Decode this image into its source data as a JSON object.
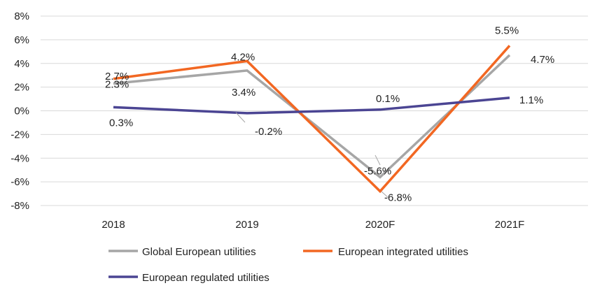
{
  "chart_data": {
    "type": "line",
    "categories": [
      "2018",
      "2019",
      "2020F",
      "2021F"
    ],
    "ylim": [
      -8,
      8
    ],
    "y_ticks": [
      8,
      6,
      4,
      2,
      0,
      -2,
      -4,
      -6,
      -8
    ],
    "y_tick_labels": [
      "8%",
      "6%",
      "4%",
      "2%",
      "0%",
      "-2%",
      "-4%",
      "-6%",
      "-8%"
    ],
    "grid": true,
    "legend_position": "bottom",
    "series": [
      {
        "name": "Global European utilities",
        "color": "#a6a6a6",
        "values": [
          2.3,
          3.4,
          -5.6,
          4.7
        ],
        "labels": [
          "2.3%",
          "3.4%",
          "-5.6%",
          "4.7%"
        ]
      },
      {
        "name": "European integrated utilities",
        "color": "#f26722",
        "values": [
          2.7,
          4.2,
          -6.8,
          5.5
        ],
        "labels": [
          "2.7%",
          "4.2%",
          "-6.8%",
          "5.5%"
        ]
      },
      {
        "name": "European regulated utilities",
        "color": "#4b4593",
        "values": [
          0.3,
          -0.2,
          0.1,
          1.1
        ],
        "labels": [
          "0.3%",
          "-0.2%",
          "0.1%",
          "1.1%"
        ]
      }
    ]
  }
}
